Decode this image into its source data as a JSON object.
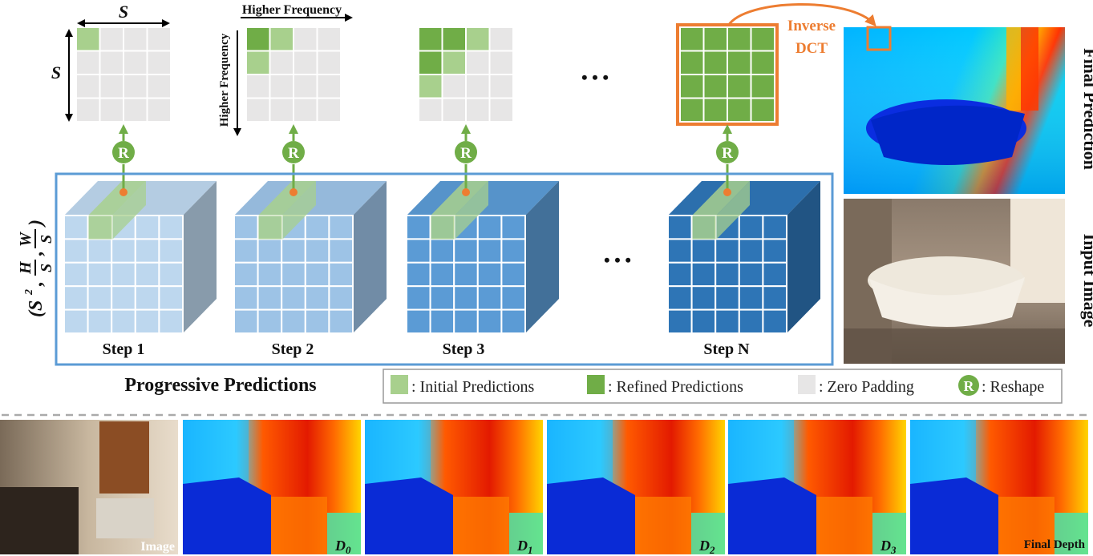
{
  "title_side": {
    "final_prediction": "Final Prediction",
    "input_image": "Input Image"
  },
  "grid_axis": {
    "s_label": "S",
    "higher_frequency_top": "Higher Frequency",
    "higher_frequency_side": "Higher Frequency"
  },
  "inverse_dct": {
    "line1": "Inverse",
    "line2": "DCT"
  },
  "reshape_badge": "R",
  "ellipsis": "• • •",
  "tensor_shape": {
    "open": "(S",
    "sup": "2",
    "h": "H",
    "w": "W",
    "den": "S",
    "close": ")"
  },
  "steps": [
    "Step 1",
    "Step 2",
    "Step 3",
    "Step N"
  ],
  "progressive_label": "Progressive Predictions",
  "legend": {
    "initial": ": Initial Predictions",
    "refined": ": Refined Predictions",
    "zero": ": Zero Padding",
    "reshape": ": Reshape"
  },
  "bottom_captions": {
    "image": "Image",
    "d0": "D",
    "d0_sub": "0",
    "d1": "D",
    "d1_sub": "1",
    "d2": "D",
    "d2_sub": "2",
    "d3": "D",
    "d3_sub": "3",
    "final": "Final Depth"
  },
  "colors": {
    "initial_green": "#a8d08d",
    "refined_green": "#70ad47",
    "zero_gray": "#e7e6e6",
    "inverse_orange": "#ed7d31",
    "frame_blue": "#5b9bd5",
    "step1_blue": "#bdd7ee",
    "step2_blue": "#9dc3e6",
    "step3_blue": "#5b9bd5",
    "stepN_blue": "#2e75b6"
  }
}
